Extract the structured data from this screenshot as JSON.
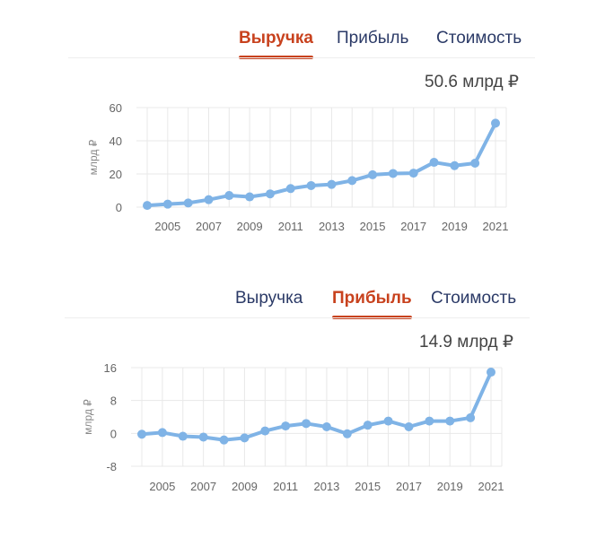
{
  "charts": [
    {
      "tabs": [
        {
          "label": "Выручка",
          "active": true
        },
        {
          "label": "Прибыль",
          "active": false
        },
        {
          "label": "Стоимость",
          "active": false
        }
      ],
      "total": "50.6 млрд ₽",
      "chart_data": {
        "type": "line",
        "x": [
          2004,
          2005,
          2006,
          2007,
          2008,
          2009,
          2010,
          2011,
          2012,
          2013,
          2014,
          2015,
          2016,
          2017,
          2018,
          2019,
          2020,
          2021
        ],
        "values": [
          1,
          1.8,
          2.5,
          4.5,
          7,
          6.2,
          8,
          11.2,
          13,
          13.7,
          16,
          19.5,
          20.3,
          20.5,
          27,
          25,
          26.5,
          50.6
        ],
        "xticks": [
          2005,
          2007,
          2009,
          2011,
          2013,
          2015,
          2017,
          2019,
          2021
        ],
        "yticks": [
          0,
          20,
          40,
          60
        ],
        "ylim": [
          0,
          60
        ],
        "ylabel": "млрд ₽",
        "grid": true,
        "line_color": "#7fb3e6"
      }
    },
    {
      "tabs": [
        {
          "label": "Выручка",
          "active": false
        },
        {
          "label": "Прибыль",
          "active": true
        },
        {
          "label": "Стоимость",
          "active": false
        }
      ],
      "total": "14.9 млрд ₽",
      "chart_data": {
        "type": "line",
        "x": [
          2004,
          2005,
          2006,
          2007,
          2008,
          2009,
          2010,
          2011,
          2012,
          2013,
          2014,
          2015,
          2016,
          2017,
          2018,
          2019,
          2020,
          2021
        ],
        "values": [
          -0.2,
          0.2,
          -0.7,
          -0.9,
          -1.6,
          -1.1,
          0.6,
          1.8,
          2.4,
          1.6,
          -0.1,
          2,
          3,
          1.6,
          3,
          3,
          3.8,
          14.9
        ],
        "xticks": [
          2005,
          2007,
          2009,
          2011,
          2013,
          2015,
          2017,
          2019,
          2021
        ],
        "yticks": [
          -8,
          0,
          8,
          16
        ],
        "ylim": [
          -8,
          16
        ],
        "ylabel": "млрд ₽",
        "grid": true,
        "line_color": "#7fb3e6"
      }
    }
  ]
}
